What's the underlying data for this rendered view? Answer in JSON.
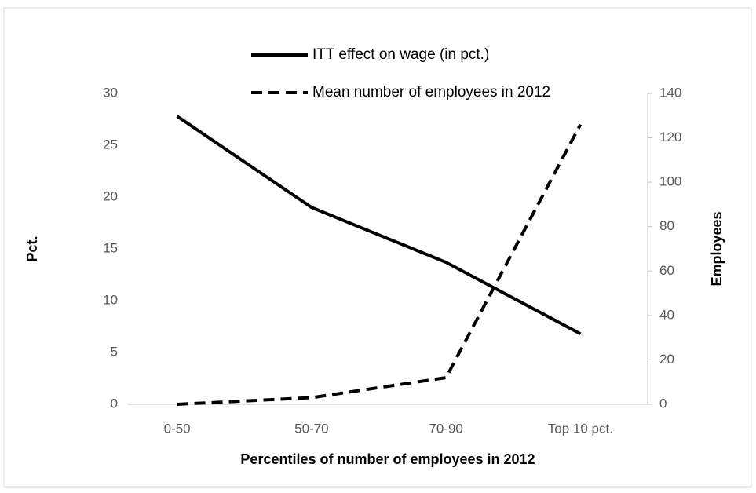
{
  "chart_data": {
    "type": "line",
    "x_label": "Percentiles of number of employees in 2012",
    "y_label": "Pct.",
    "y2_label": "Employees",
    "categories": [
      "0-50",
      "50-70",
      "70-90",
      "Top 10 pct."
    ],
    "series": [
      {
        "name": "ITT effect on wage (in pct.)",
        "color": "#000000",
        "line_style": "solid",
        "values": [
          27.8,
          19.0,
          13.7,
          6.8
        ]
      },
      {
        "name": "Mean number of employees in 2012",
        "color": "#000000",
        "line_style": "dashed",
        "axis": "y2",
        "values": [
          0,
          3,
          12,
          126
        ]
      }
    ],
    "ylim": [
      0,
      30
    ],
    "yticks": [
      0,
      5,
      10,
      15,
      20,
      25,
      30
    ],
    "y2lim": [
      0,
      140
    ],
    "y2ticks": [
      0,
      20,
      40,
      60,
      80,
      100,
      120,
      140
    ],
    "grid": false,
    "legend": "top"
  }
}
